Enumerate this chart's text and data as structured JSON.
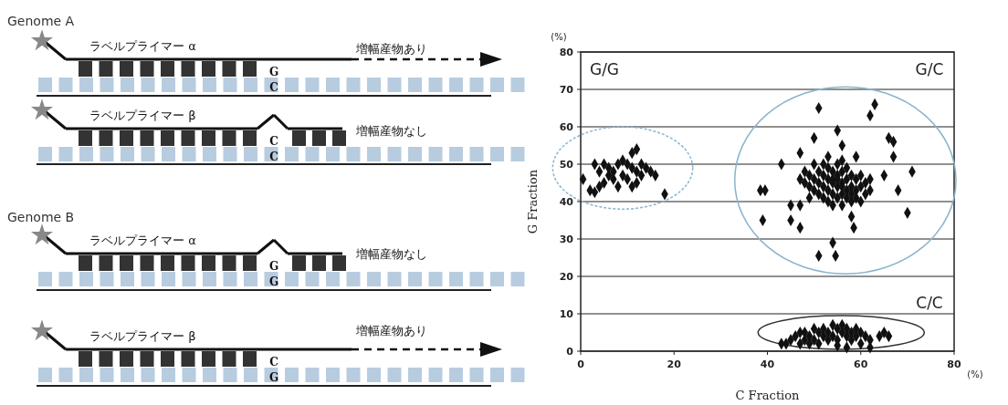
{
  "chart_data": [
    {
      "type": "other",
      "annotations": [
        "Genome A",
        "ラベルプライマー α",
        "G",
        "C",
        "増幅産物あり",
        "ラベルプライマー β",
        "C",
        "C",
        "増幅産物なし",
        "Genome B",
        "ラベルプライマー α",
        "G",
        "G",
        "増幅産物なし",
        "ラベルプライマー β",
        "C",
        "G",
        "増幅産物あり"
      ]
    },
    {
      "type": "scatter",
      "xlabel": "C Fraction",
      "ylabel": "G Fraction",
      "xlim": [
        0,
        80
      ],
      "ylim": [
        0,
        80
      ],
      "xticks": [
        0,
        20,
        40,
        60,
        80
      ],
      "yticks": [
        0,
        10,
        20,
        30,
        40,
        50,
        60,
        70,
        80
      ],
      "grid": "y",
      "marker": "diamond",
      "annotations": [
        "(%)",
        "(%)",
        "G/G",
        "G/C",
        "C/C"
      ],
      "series": [
        {
          "color": "#111111",
          "x": [
            0.5,
            2,
            3,
            4,
            5,
            6,
            7,
            8,
            4,
            5,
            6,
            8,
            9,
            10,
            11,
            9,
            12,
            13,
            14,
            15,
            16,
            11,
            12,
            10,
            11,
            12,
            18,
            3,
            7,
            13,
            51,
            63,
            62,
            55,
            50,
            56,
            66,
            67,
            67,
            47,
            53,
            59,
            43,
            71,
            65,
            38.5,
            39.5,
            68,
            70,
            39,
            45,
            47,
            45,
            47,
            58,
            58.5,
            54,
            51,
            54.6,
            48,
            49,
            50,
            51,
            52,
            53,
            54,
            55,
            56,
            57,
            58,
            59,
            60,
            52,
            53,
            54,
            55,
            56,
            57,
            58,
            51,
            50,
            49,
            48,
            47,
            53,
            54,
            55,
            56,
            57,
            58,
            59,
            60,
            61,
            62,
            55,
            56,
            52,
            50,
            51,
            53,
            54,
            56,
            57,
            58,
            54,
            55,
            56,
            52,
            59,
            60,
            61,
            49,
            62,
            43,
            45,
            46,
            47,
            48,
            48,
            49,
            50,
            50,
            51,
            52,
            52,
            53,
            53,
            54,
            54,
            55,
            55,
            56,
            56,
            57,
            57,
            58,
            58,
            59,
            59,
            60,
            60,
            61,
            62,
            64,
            65,
            66,
            47,
            49,
            51,
            44,
            62,
            57,
            55
          ],
          "values": [
            46,
            43,
            42.5,
            44,
            45,
            47,
            46,
            44,
            48,
            50,
            49,
            50,
            51,
            50,
            49,
            47,
            48,
            50,
            49,
            48,
            47,
            53,
            54,
            46,
            44,
            45,
            42,
            50,
            48,
            47,
            65,
            66,
            63,
            59,
            57,
            55,
            57,
            56,
            52,
            53,
            52,
            52,
            50,
            48,
            47,
            43,
            43,
            43,
            37,
            35,
            35,
            33,
            39,
            39,
            36,
            33,
            29,
            25.5,
            25.5,
            48,
            47,
            46,
            48,
            47,
            46,
            45,
            44,
            45,
            46,
            44,
            43,
            44,
            44,
            43,
            42,
            41,
            42,
            41,
            40,
            42,
            43,
            44,
            45,
            46,
            49,
            48,
            47,
            48,
            49,
            47,
            46,
            47,
            45,
            43,
            50,
            51,
            50,
            50,
            45,
            40,
            39,
            39,
            43,
            42,
            46,
            46,
            44,
            41,
            41,
            40,
            42,
            41,
            46,
            2,
            3,
            4,
            5,
            3,
            5,
            4,
            6,
            3,
            5,
            4,
            6,
            3,
            5,
            7,
            4,
            6,
            3,
            5,
            7,
            4,
            6,
            5,
            3,
            6,
            4,
            5,
            2,
            4,
            3,
            4,
            5,
            4,
            2,
            2,
            2,
            2,
            1,
            1,
            1.5
          ]
        }
      ]
    }
  ]
}
